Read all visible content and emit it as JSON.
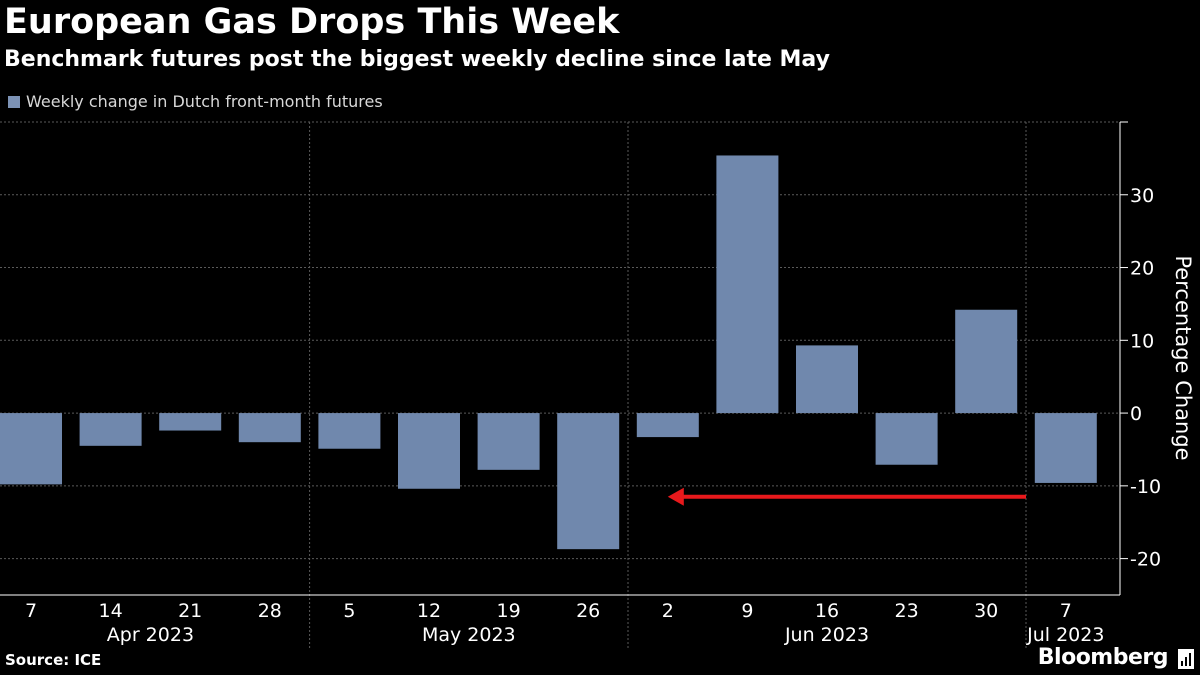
{
  "chart_data": {
    "type": "bar",
    "title": "European Gas Drops This Week",
    "subtitle": "Benchmark futures post the biggest weekly decline since late May",
    "legend": [
      "Weekly change in Dutch front-month futures"
    ],
    "ylabel": "Percentage Change",
    "xlabel": "",
    "ylim": [
      -25,
      40
    ],
    "yticks": [
      -20,
      -10,
      0,
      10,
      20,
      30
    ],
    "categories": [
      "7",
      "14",
      "21",
      "28",
      "5",
      "12",
      "19",
      "26",
      "2",
      "9",
      "16",
      "23",
      "30",
      "7"
    ],
    "series": [
      {
        "name": "Weekly change in Dutch front-month futures",
        "values": [
          -9.8,
          -4.5,
          -2.4,
          -4.0,
          -4.9,
          -10.4,
          -7.8,
          -18.7,
          -3.3,
          35.4,
          9.3,
          -7.1,
          14.2,
          -9.6
        ]
      }
    ],
    "month_labels": [
      "Apr 2023",
      "May 2023",
      "Jun 2023",
      "Jul 2023"
    ],
    "annotation": "arrow pointing from the latest week back to the week of 2 Jun (since late May)",
    "grid": true,
    "colors": {
      "bar": "#7088ad",
      "arrow": "#e8191c",
      "grid": "#5a5a5a",
      "legend": "#7d93b6"
    }
  },
  "footer": {
    "source": "Source: ICE",
    "brand": "Bloomberg"
  }
}
